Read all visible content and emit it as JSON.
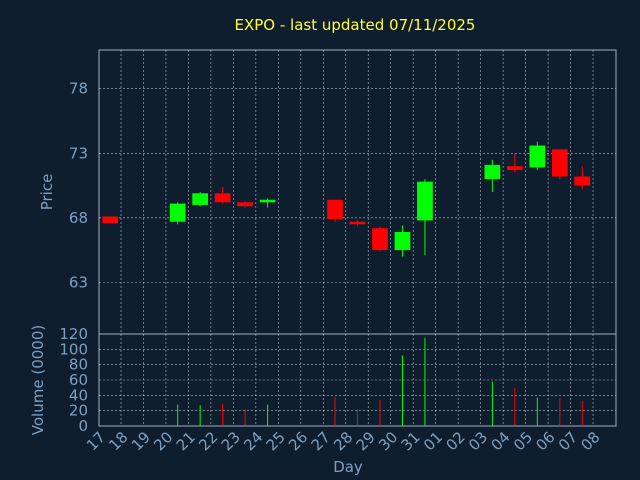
{
  "chart_data": [
    {
      "type": "candlestick",
      "title": "EXPO - last updated 07/11/2025",
      "ylabel": "Price",
      "yticks": [
        63,
        68,
        73,
        78
      ],
      "ylim": [
        59,
        81
      ],
      "grid": true,
      "colors": {
        "up": "#00ff00",
        "down": "#ff0000",
        "background": "#0f1e2e",
        "grid": "#ffffff",
        "text": "#7f9fbf",
        "title": "#ffff33"
      },
      "categories": [
        "17",
        "18",
        "19",
        "20",
        "21",
        "22",
        "23",
        "24",
        "25",
        "26",
        "27",
        "28",
        "29",
        "30",
        "31",
        "01",
        "02",
        "03",
        "04",
        "05",
        "06",
        "07",
        "08"
      ],
      "candles": [
        {
          "day": "17",
          "open": 68.1,
          "high": 68.1,
          "low": 67.6,
          "close": 67.6
        },
        {
          "day": "20",
          "open": 67.7,
          "high": 69.2,
          "low": 67.5,
          "close": 69.1
        },
        {
          "day": "21",
          "open": 69.0,
          "high": 70.0,
          "low": 68.9,
          "close": 69.9
        },
        {
          "day": "22",
          "open": 69.9,
          "high": 70.4,
          "low": 69.1,
          "close": 69.2
        },
        {
          "day": "23",
          "open": 69.2,
          "high": 69.3,
          "low": 68.8,
          "close": 68.9
        },
        {
          "day": "24",
          "open": 69.2,
          "high": 69.5,
          "low": 68.8,
          "close": 69.4
        },
        {
          "day": "27",
          "open": 69.4,
          "high": 69.4,
          "low": 67.7,
          "close": 67.9
        },
        {
          "day": "28",
          "open": 67.7,
          "high": 67.8,
          "low": 67.4,
          "close": 67.5
        },
        {
          "day": "29",
          "open": 67.2,
          "high": 67.3,
          "low": 65.4,
          "close": 65.5
        },
        {
          "day": "30",
          "open": 65.5,
          "high": 67.4,
          "low": 65.0,
          "close": 66.9
        },
        {
          "day": "31",
          "open": 67.8,
          "high": 71.0,
          "low": 65.1,
          "close": 70.8
        },
        {
          "day": "03",
          "open": 71.0,
          "high": 72.5,
          "low": 70.0,
          "close": 72.1
        },
        {
          "day": "04",
          "open": 72.0,
          "high": 73.0,
          "low": 71.5,
          "close": 71.7
        },
        {
          "day": "05",
          "open": 71.9,
          "high": 73.9,
          "low": 71.7,
          "close": 73.6
        },
        {
          "day": "06",
          "open": 73.3,
          "high": 73.3,
          "low": 71.0,
          "close": 71.2
        },
        {
          "day": "07",
          "open": 71.2,
          "high": 72.0,
          "low": 70.2,
          "close": 70.5
        }
      ]
    },
    {
      "type": "bar",
      "ylabel": "Volume (0000)",
      "xlabel": "Day",
      "yticks": [
        0,
        20,
        40,
        60,
        80,
        100,
        120
      ],
      "ylim": [
        0,
        120
      ],
      "grid": true,
      "categories": [
        "17",
        "18",
        "19",
        "20",
        "21",
        "22",
        "23",
        "24",
        "25",
        "26",
        "27",
        "28",
        "29",
        "30",
        "31",
        "01",
        "02",
        "03",
        "04",
        "05",
        "06",
        "07",
        "08"
      ],
      "volumes": [
        {
          "day": "20",
          "value": 28,
          "up": true
        },
        {
          "day": "21",
          "value": 27,
          "up": true
        },
        {
          "day": "22",
          "value": 29,
          "up": false
        },
        {
          "day": "23",
          "value": 22,
          "up": false
        },
        {
          "day": "24",
          "value": 28,
          "up": true
        },
        {
          "day": "27",
          "value": 38,
          "up": false
        },
        {
          "day": "28",
          "value": 22,
          "up": false
        },
        {
          "day": "29",
          "value": 34,
          "up": false
        },
        {
          "day": "30",
          "value": 92,
          "up": true
        },
        {
          "day": "31",
          "value": 115,
          "up": true
        },
        {
          "day": "03",
          "value": 58,
          "up": true
        },
        {
          "day": "04",
          "value": 50,
          "up": false
        },
        {
          "day": "05",
          "value": 37,
          "up": true
        },
        {
          "day": "06",
          "value": 36,
          "up": false
        },
        {
          "day": "07",
          "value": 33,
          "up": false
        }
      ]
    }
  ]
}
